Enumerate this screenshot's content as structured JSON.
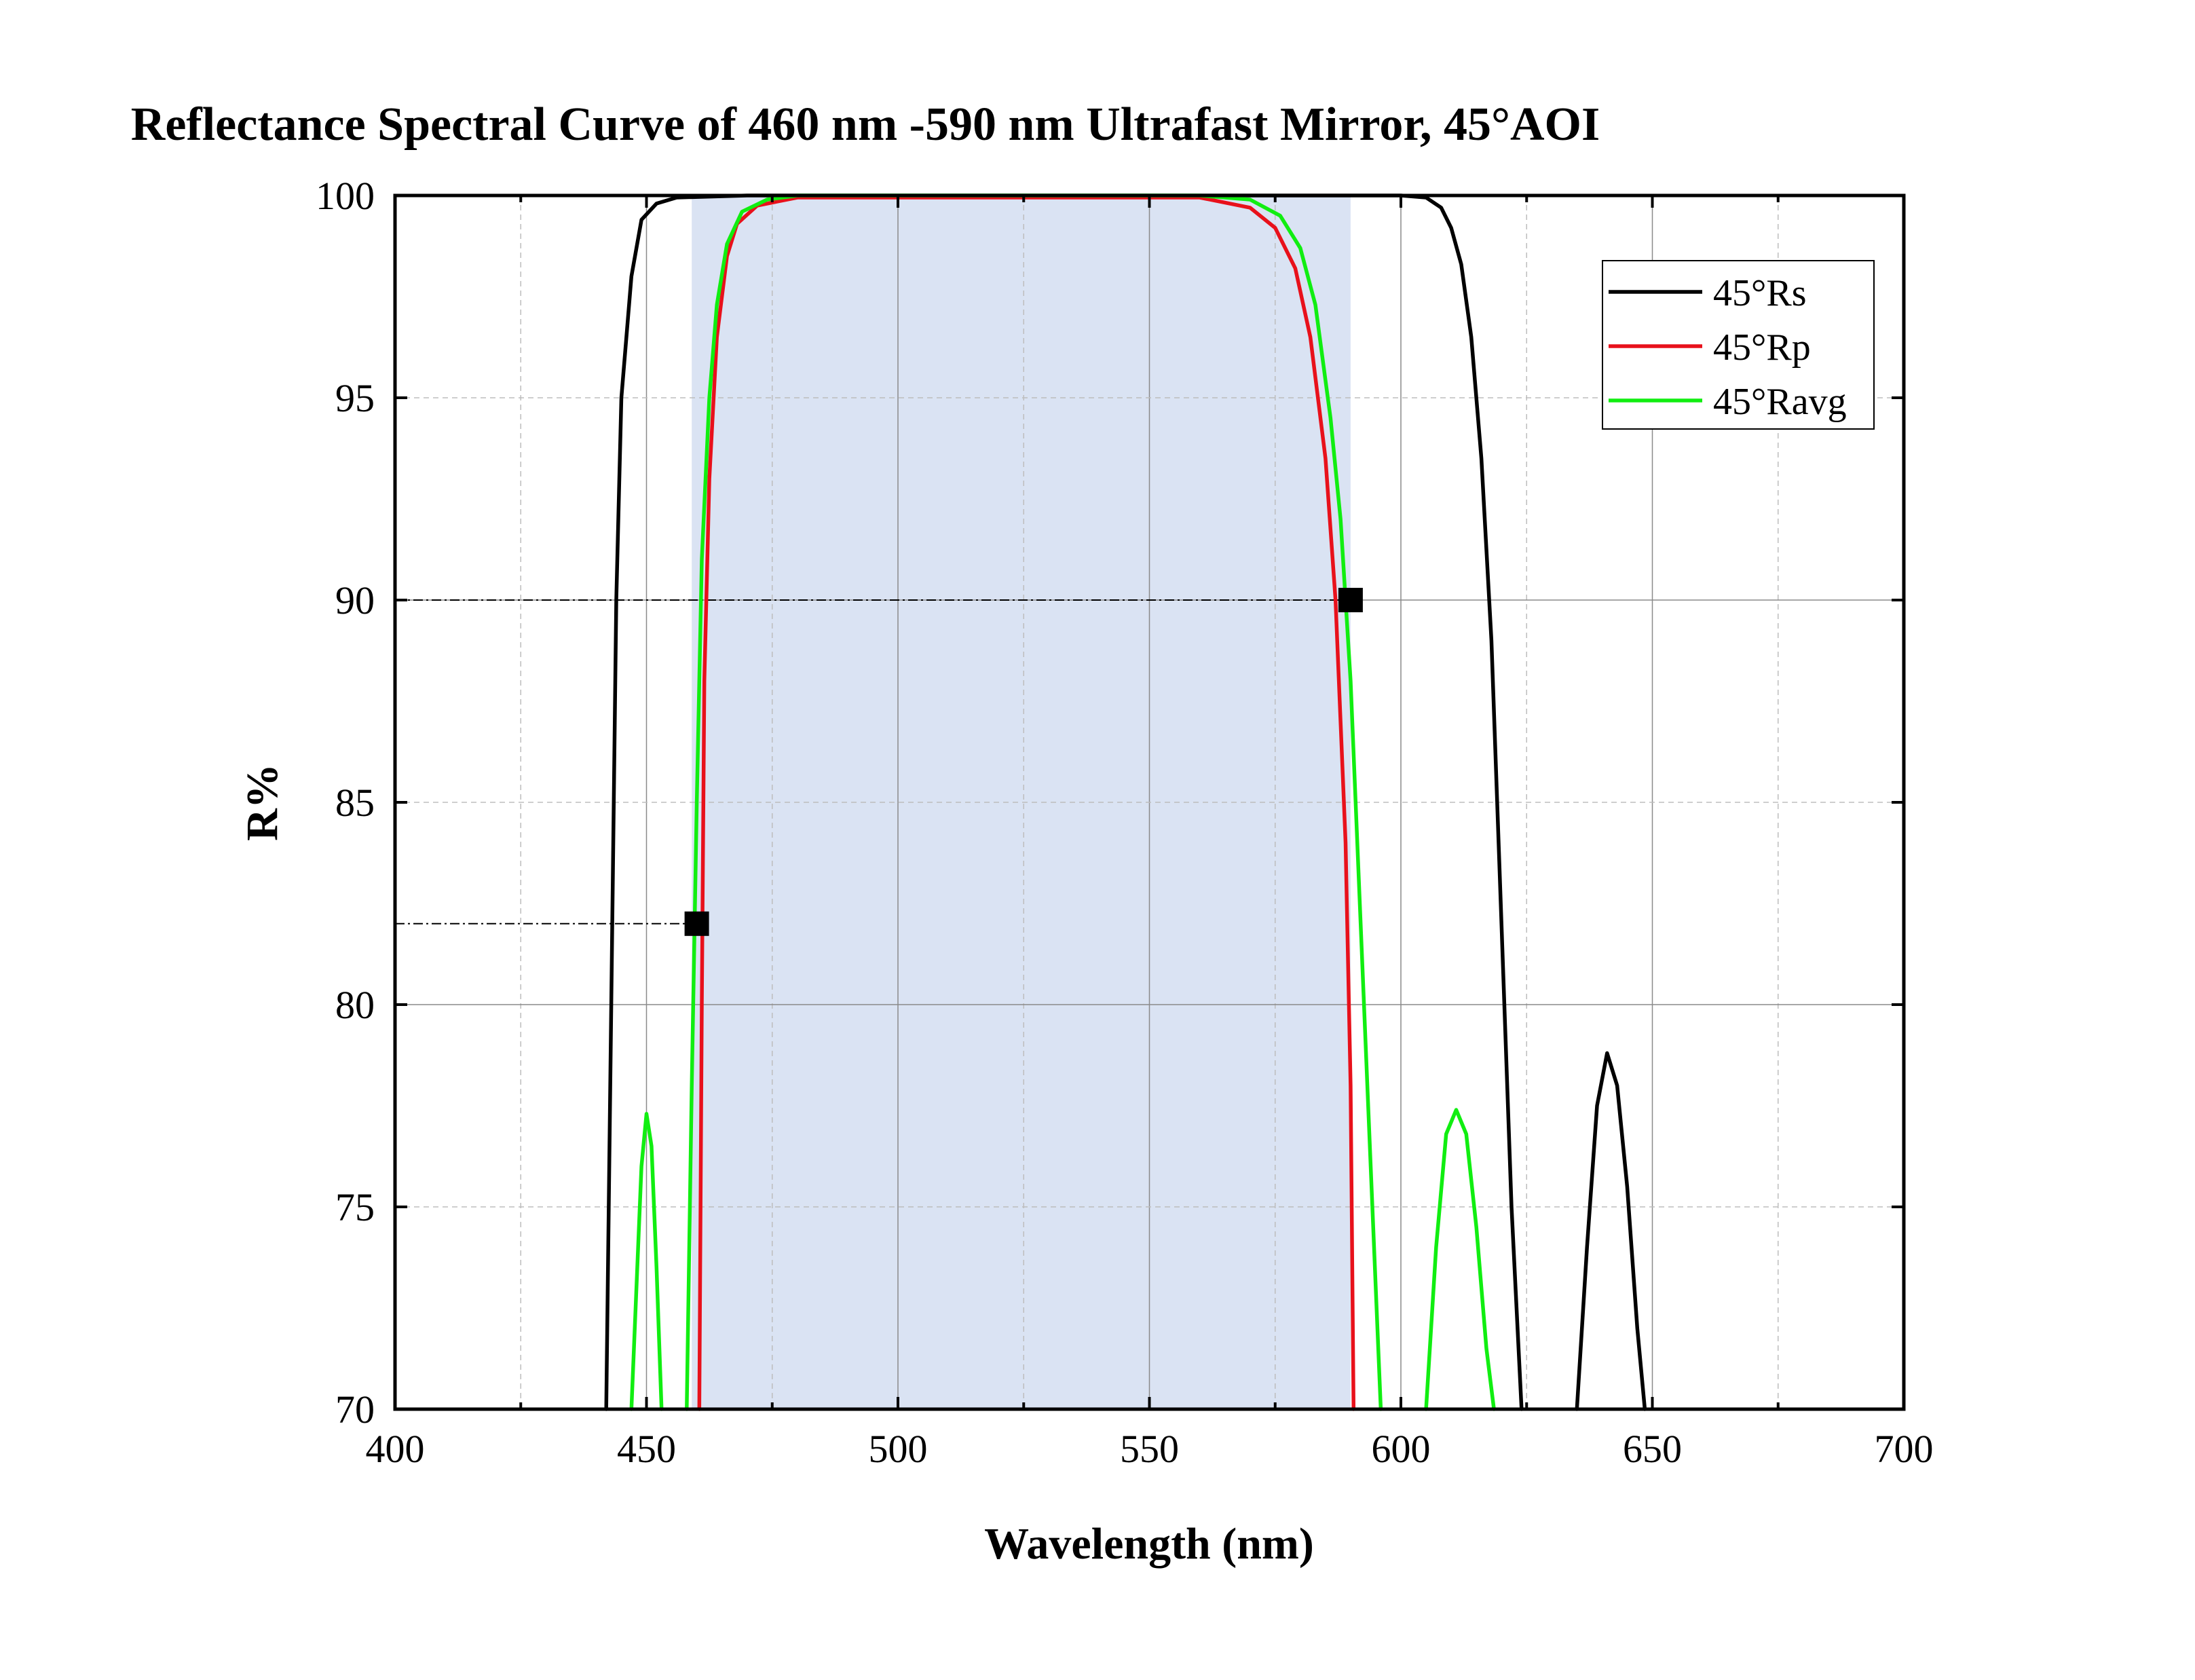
{
  "chart_data": {
    "type": "line",
    "title": "Reflectance Spectral Curve of  460 nm -590 nm Ultrafast Mirror,  45°AOI",
    "xlabel": "Wavelength (nm)",
    "ylabel": "R%",
    "xlim": [
      400,
      700
    ],
    "ylim": [
      70,
      100
    ],
    "xticks": [
      400,
      450,
      500,
      550,
      600,
      650,
      700
    ],
    "xtick_labels": [
      "400",
      "450",
      "500",
      "550",
      "600",
      "650",
      "700"
    ],
    "yticks": [
      70,
      75,
      80,
      85,
      90,
      95,
      100
    ],
    "ytick_labels": [
      "70",
      "75",
      "80",
      "85",
      "90",
      "95",
      "100"
    ],
    "grid": true,
    "legend_position": "top-right",
    "highlight_band": {
      "x": [
        459,
        590
      ],
      "color": "#dae3f3"
    },
    "markers": [
      {
        "x": 460,
        "y": 82
      },
      {
        "x": 590,
        "y": 90
      }
    ],
    "series": [
      {
        "name": "45°Rs",
        "color": "#000000",
        "segments": [
          [
            [
              442,
              70
            ],
            [
              443,
              80
            ],
            [
              444,
              90
            ],
            [
              445,
              95
            ],
            [
              447,
              98
            ],
            [
              449,
              99.4
            ],
            [
              452,
              99.8
            ],
            [
              456,
              99.95
            ],
            [
              470,
              100
            ],
            [
              600,
              100
            ],
            [
              605,
              99.95
            ],
            [
              608,
              99.7
            ],
            [
              610,
              99.2
            ],
            [
              612,
              98.3
            ],
            [
              614,
              96.5
            ],
            [
              616,
              93.5
            ],
            [
              618,
              89
            ],
            [
              620,
              82
            ],
            [
              622,
              75
            ],
            [
              624,
              70
            ]
          ],
          [
            [
              635,
              70
            ],
            [
              637,
              74
            ],
            [
              639,
              77.5
            ],
            [
              641,
              78.8
            ],
            [
              643,
              78
            ],
            [
              645,
              75.5
            ],
            [
              647,
              72
            ],
            [
              648.5,
              70
            ]
          ]
        ]
      },
      {
        "name": "45°Rp",
        "color": "#e8111b",
        "segments": [
          [
            [
              460.5,
              70
            ],
            [
              461,
              80
            ],
            [
              461.5,
              88
            ],
            [
              462.5,
              93
            ],
            [
              464,
              96.5
            ],
            [
              466,
              98.5
            ],
            [
              468,
              99.3
            ],
            [
              472,
              99.75
            ],
            [
              480,
              99.95
            ],
            [
              560,
              99.95
            ],
            [
              570,
              99.7
            ],
            [
              575,
              99.2
            ],
            [
              579,
              98.2
            ],
            [
              582,
              96.5
            ],
            [
              585,
              93.5
            ],
            [
              587,
              90
            ],
            [
              589,
              84
            ],
            [
              590,
              78
            ],
            [
              590.6,
              70
            ]
          ]
        ]
      },
      {
        "name": "45°Ravg",
        "color": "#11ee11",
        "segments": [
          [
            [
              447,
              70
            ],
            [
              448,
              73
            ],
            [
              449,
              76
            ],
            [
              450,
              77.3
            ],
            [
              451,
              76.5
            ],
            [
              452,
              73.5
            ],
            [
              453,
              70
            ]
          ],
          [
            [
              458,
              70
            ],
            [
              459,
              78
            ],
            [
              460,
              85
            ],
            [
              461,
              91
            ],
            [
              462.5,
              95
            ],
            [
              464,
              97.3
            ],
            [
              466,
              98.8
            ],
            [
              469,
              99.6
            ],
            [
              474,
              99.9
            ],
            [
              480,
              100
            ],
            [
              560,
              100
            ],
            [
              570,
              99.9
            ],
            [
              576,
              99.5
            ],
            [
              580,
              98.7
            ],
            [
              583,
              97.3
            ],
            [
              586,
              94.5
            ],
            [
              588,
              92
            ],
            [
              590,
              88
            ],
            [
              592,
              82
            ],
            [
              594,
              76
            ],
            [
              596,
              70
            ]
          ],
          [
            [
              605,
              70
            ],
            [
              607,
              74
            ],
            [
              609,
              76.8
            ],
            [
              611,
              77.4
            ],
            [
              613,
              76.8
            ],
            [
              615,
              74.5
            ],
            [
              617,
              71.5
            ],
            [
              618.5,
              70
            ]
          ]
        ]
      }
    ]
  }
}
